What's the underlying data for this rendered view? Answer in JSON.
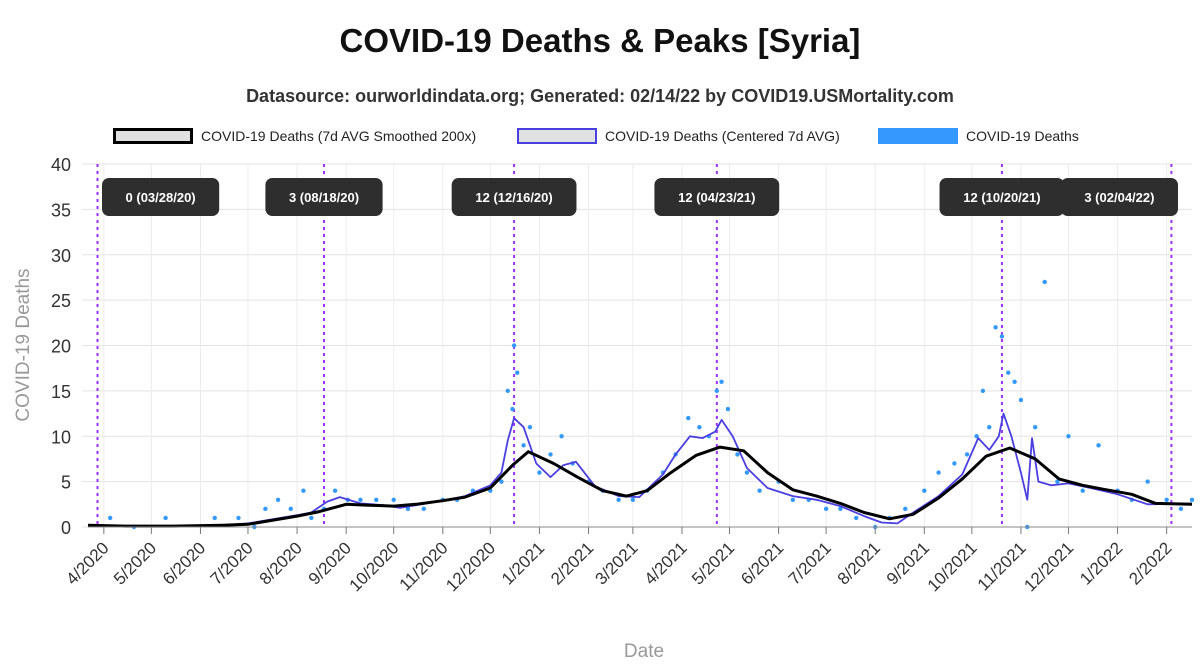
{
  "chart_data": {
    "type": "line",
    "title": "COVID-19 Deaths & Peaks [Syria]",
    "subtitle": "Datasource: ourworldindata.org; Generated: 02/14/22 by COVID19.USMortality.com",
    "xlabel": "Date",
    "ylabel": "COVID-19 Deaths",
    "ylim": [
      0,
      40
    ],
    "yticks": [
      0,
      5,
      10,
      15,
      20,
      25,
      30,
      35,
      40
    ],
    "xlim": [
      "2020-03-22",
      "2022-02-17"
    ],
    "xticks": [
      {
        "date": "2020-04-01",
        "label": "4/2020"
      },
      {
        "date": "2020-05-01",
        "label": "5/2020"
      },
      {
        "date": "2020-06-01",
        "label": "6/2020"
      },
      {
        "date": "2020-07-01",
        "label": "7/2020"
      },
      {
        "date": "2020-08-01",
        "label": "8/2020"
      },
      {
        "date": "2020-09-01",
        "label": "9/2020"
      },
      {
        "date": "2020-10-01",
        "label": "10/2020"
      },
      {
        "date": "2020-11-01",
        "label": "11/2020"
      },
      {
        "date": "2020-12-01",
        "label": "12/2020"
      },
      {
        "date": "2021-01-01",
        "label": "1/2021"
      },
      {
        "date": "2021-02-01",
        "label": "2/2021"
      },
      {
        "date": "2021-03-01",
        "label": "3/2021"
      },
      {
        "date": "2021-04-01",
        "label": "4/2021"
      },
      {
        "date": "2021-05-01",
        "label": "5/2021"
      },
      {
        "date": "2021-06-01",
        "label": "6/2021"
      },
      {
        "date": "2021-07-01",
        "label": "7/2021"
      },
      {
        "date": "2021-08-01",
        "label": "8/2021"
      },
      {
        "date": "2021-09-01",
        "label": "9/2021"
      },
      {
        "date": "2021-10-01",
        "label": "10/2021"
      },
      {
        "date": "2021-11-01",
        "label": "11/2021"
      },
      {
        "date": "2021-12-01",
        "label": "12/2021"
      },
      {
        "date": "2022-01-01",
        "label": "1/2022"
      },
      {
        "date": "2022-02-01",
        "label": "2/2022"
      }
    ],
    "grid": true,
    "legend_position": "top",
    "legend": [
      {
        "label": "COVID-19 Deaths (7d AVG Smoothed 200x)",
        "color": "#000000",
        "fill": "#e0e0e0",
        "kind": "outline"
      },
      {
        "label": "COVID-19 Deaths (Centered 7d AVG)",
        "color": "#4a3fe0",
        "fill": "#e0e0e0",
        "kind": "outline"
      },
      {
        "label": "COVID-19 Deaths",
        "color": "#3399ff",
        "fill": "#3399ff",
        "kind": "solid"
      }
    ],
    "peaks": [
      {
        "date": "2020-03-28",
        "label": "0 (03/28/20)"
      },
      {
        "date": "2020-08-18",
        "label": "3 (08/18/20)"
      },
      {
        "date": "2020-12-16",
        "label": "12 (12/16/20)"
      },
      {
        "date": "2021-04-23",
        "label": "12 (04/23/21)"
      },
      {
        "date": "2021-10-20",
        "label": "12 (10/20/21)"
      },
      {
        "date": "2022-02-04",
        "label": "3 (02/04/22)"
      }
    ],
    "series": [
      {
        "name": "COVID-19 Deaths (7d AVG Smoothed 200x)",
        "color": "#000000",
        "x": [
          "2020-03-22",
          "2020-04-15",
          "2020-05-15",
          "2020-06-15",
          "2020-07-01",
          "2020-07-15",
          "2020-08-01",
          "2020-08-15",
          "2020-09-01",
          "2020-09-15",
          "2020-10-01",
          "2020-10-15",
          "2020-11-01",
          "2020-11-15",
          "2020-12-01",
          "2020-12-15",
          "2020-12-25",
          "2021-01-10",
          "2021-01-25",
          "2021-02-10",
          "2021-02-25",
          "2021-03-10",
          "2021-03-25",
          "2021-04-10",
          "2021-04-25",
          "2021-05-10",
          "2021-05-25",
          "2021-06-10",
          "2021-06-25",
          "2021-07-10",
          "2021-07-25",
          "2021-08-10",
          "2021-08-25",
          "2021-09-10",
          "2021-09-25",
          "2021-10-10",
          "2021-10-25",
          "2021-11-10",
          "2021-11-25",
          "2021-12-10",
          "2021-12-25",
          "2022-01-10",
          "2022-01-25",
          "2022-02-17"
        ],
        "y": [
          0.2,
          0.1,
          0.1,
          0.2,
          0.3,
          0.7,
          1.2,
          1.7,
          2.5,
          2.4,
          2.3,
          2.5,
          2.9,
          3.3,
          4.3,
          6.8,
          8.3,
          7.0,
          5.5,
          4.0,
          3.4,
          4.0,
          6.0,
          7.9,
          8.8,
          8.4,
          6.0,
          4.1,
          3.4,
          2.6,
          1.6,
          0.9,
          1.4,
          3.2,
          5.3,
          7.8,
          8.7,
          7.5,
          5.3,
          4.6,
          4.1,
          3.6,
          2.6,
          2.5
        ]
      },
      {
        "name": "COVID-19 Deaths (Centered 7d AVG)",
        "color": "#4a3fe0",
        "x": [
          "2020-03-22",
          "2020-04-15",
          "2020-05-15",
          "2020-06-15",
          "2020-07-01",
          "2020-07-15",
          "2020-08-01",
          "2020-08-10",
          "2020-08-20",
          "2020-08-28",
          "2020-09-10",
          "2020-09-25",
          "2020-10-05",
          "2020-10-15",
          "2020-11-01",
          "2020-11-15",
          "2020-12-01",
          "2020-12-08",
          "2020-12-12",
          "2020-12-16",
          "2020-12-22",
          "2020-12-30",
          "2021-01-08",
          "2021-01-16",
          "2021-01-24",
          "2021-02-05",
          "2021-02-20",
          "2021-03-05",
          "2021-03-20",
          "2021-03-28",
          "2021-04-06",
          "2021-04-14",
          "2021-04-22",
          "2021-04-26",
          "2021-05-03",
          "2021-05-12",
          "2021-05-25",
          "2021-06-10",
          "2021-06-25",
          "2021-07-10",
          "2021-07-25",
          "2021-08-05",
          "2021-08-15",
          "2021-08-25",
          "2021-09-10",
          "2021-09-25",
          "2021-10-05",
          "2021-10-12",
          "2021-10-18",
          "2021-10-21",
          "2021-10-26",
          "2021-11-01",
          "2021-11-05",
          "2021-11-08",
          "2021-11-12",
          "2021-11-20",
          "2021-12-01",
          "2021-12-15",
          "2022-01-01",
          "2022-01-20",
          "2022-02-17"
        ],
        "y": [
          0.2,
          0.1,
          0.1,
          0.2,
          0.4,
          0.8,
          1.3,
          1.6,
          2.8,
          3.3,
          2.6,
          2.4,
          2.1,
          2.4,
          2.9,
          3.4,
          4.6,
          6.0,
          9.5,
          12.0,
          11.0,
          7.0,
          5.5,
          6.8,
          7.2,
          4.5,
          3.4,
          3.3,
          5.8,
          8.0,
          10.0,
          9.8,
          10.5,
          11.8,
          10.0,
          6.5,
          4.3,
          3.4,
          3.0,
          2.3,
          1.2,
          0.5,
          0.4,
          1.6,
          3.4,
          5.8,
          9.8,
          8.5,
          10.0,
          12.5,
          10.0,
          6.0,
          3.0,
          9.8,
          5.0,
          4.6,
          4.8,
          4.3,
          3.6,
          2.5,
          2.6
        ]
      },
      {
        "name": "COVID-19 Deaths",
        "color": "#3399ff",
        "x": [
          "2020-04-05",
          "2020-04-20",
          "2020-05-10",
          "2020-06-10",
          "2020-06-25",
          "2020-07-05",
          "2020-07-12",
          "2020-07-20",
          "2020-07-28",
          "2020-08-05",
          "2020-08-10",
          "2020-08-18",
          "2020-08-25",
          "2020-09-02",
          "2020-09-10",
          "2020-09-20",
          "2020-10-01",
          "2020-10-10",
          "2020-10-20",
          "2020-11-01",
          "2020-11-10",
          "2020-11-20",
          "2020-12-01",
          "2020-12-08",
          "2020-12-12",
          "2020-12-15",
          "2020-12-16",
          "2020-12-18",
          "2020-12-22",
          "2020-12-26",
          "2021-01-01",
          "2021-01-08",
          "2021-01-15",
          "2021-01-22",
          "2021-02-01",
          "2021-02-10",
          "2021-02-20",
          "2021-03-01",
          "2021-03-10",
          "2021-03-20",
          "2021-03-28",
          "2021-04-05",
          "2021-04-12",
          "2021-04-18",
          "2021-04-23",
          "2021-04-26",
          "2021-04-30",
          "2021-05-06",
          "2021-05-12",
          "2021-05-20",
          "2021-06-01",
          "2021-06-10",
          "2021-06-20",
          "2021-07-01",
          "2021-07-10",
          "2021-07-20",
          "2021-08-01",
          "2021-08-10",
          "2021-08-20",
          "2021-09-01",
          "2021-09-10",
          "2021-09-20",
          "2021-09-28",
          "2021-10-04",
          "2021-10-08",
          "2021-10-12",
          "2021-10-16",
          "2021-10-20",
          "2021-10-24",
          "2021-10-28",
          "2021-11-01",
          "2021-11-05",
          "2021-11-10",
          "2021-11-16",
          "2021-11-24",
          "2021-12-01",
          "2021-12-10",
          "2021-12-20",
          "2022-01-01",
          "2022-01-10",
          "2022-01-20",
          "2022-02-01",
          "2022-02-10",
          "2022-02-17"
        ],
        "y": [
          1,
          0,
          1,
          1,
          1,
          0,
          2,
          3,
          2,
          4,
          1,
          2,
          4,
          3,
          3,
          3,
          3,
          2,
          2,
          3,
          3,
          4,
          4,
          5,
          15,
          13,
          20,
          17,
          9,
          11,
          6,
          8,
          10,
          7,
          5,
          4,
          3,
          3,
          4,
          6,
          8,
          12,
          11,
          10,
          15,
          16,
          13,
          8,
          6,
          4,
          5,
          3,
          3,
          2,
          2,
          1,
          0,
          1,
          2,
          4,
          6,
          7,
          8,
          10,
          15,
          11,
          22,
          21,
          17,
          16,
          14,
          0,
          11,
          27,
          5,
          10,
          4,
          9,
          4,
          3,
          5,
          3,
          2,
          3
        ]
      }
    ]
  }
}
